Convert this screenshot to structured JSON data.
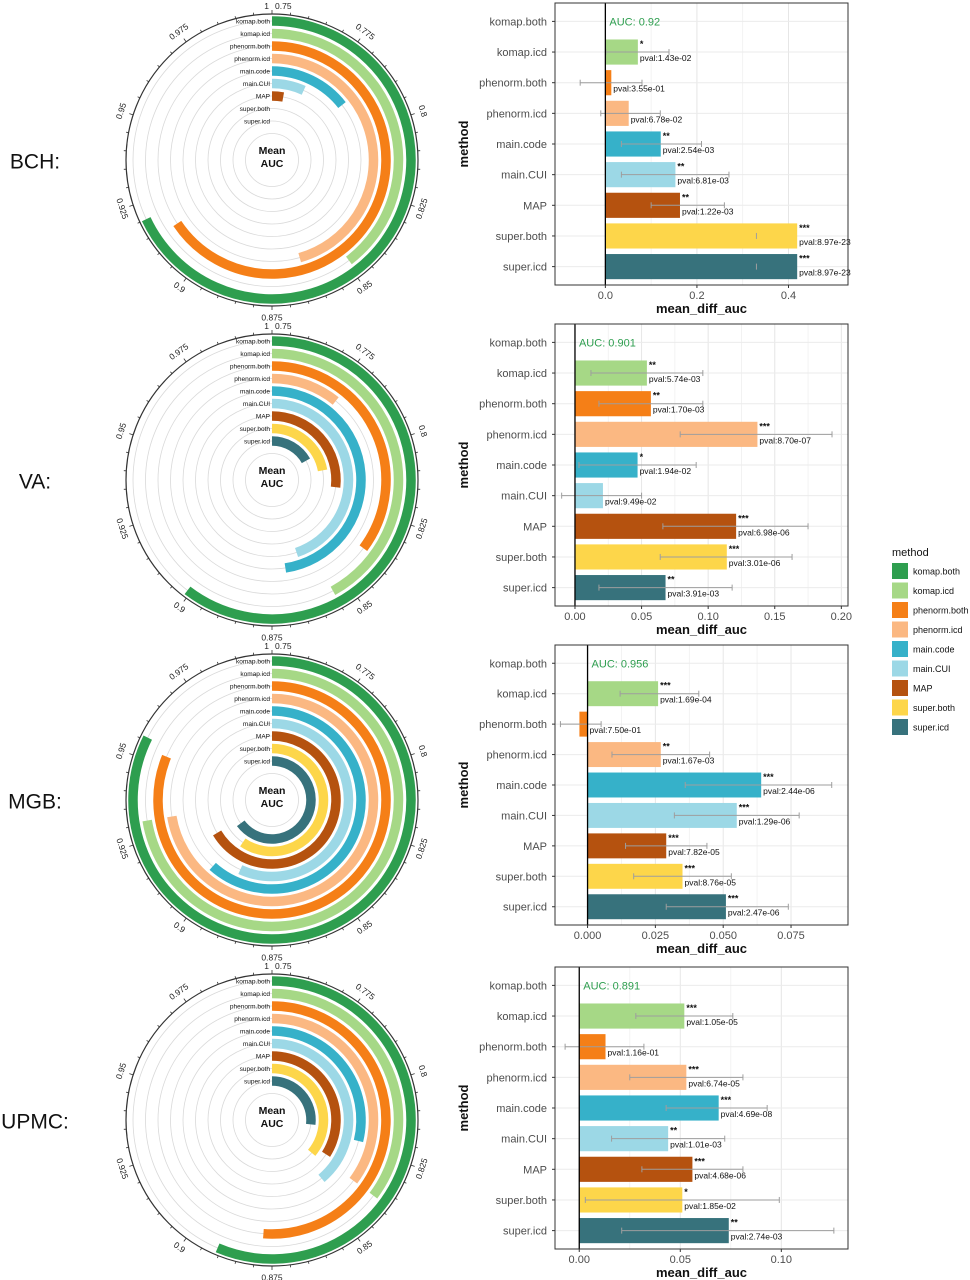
{
  "colors": {
    "komap.both": "#2e9e4f",
    "komap.icd": "#a6d886",
    "phenorm.both": "#f57f17",
    "phenorm.icd": "#fbb882",
    "main.code": "#36b1c9",
    "main.CUI": "#9cd8e6",
    "MAP": "#b5520f",
    "super.both": "#fdd64a",
    "super.icd": "#37727c"
  },
  "legend": {
    "title": "method",
    "entries": [
      "komap.both",
      "komap.icd",
      "phenorm.both",
      "phenorm.icd",
      "main.code",
      "main.CUI",
      "MAP",
      "super.both",
      "super.icd"
    ]
  },
  "radial_common": {
    "center_label_1": "Mean",
    "center_label_2": "AUC",
    "tick_labels": [
      "1",
      "0.75",
      "0.775",
      "0.8",
      "0.825",
      "0.85",
      "0.875",
      "0.9",
      "0.925",
      "0.95",
      "0.975"
    ],
    "ring_labels": [
      "komap.both",
      "komap.icd",
      "phenorm.both",
      "phenorm.icd",
      "main.code",
      "main.CUI",
      "MAP",
      "super.both",
      "super.icd"
    ]
  },
  "chart_data": [
    {
      "type": "radial_bar",
      "site": "BCH:",
      "angular_range": [
        0.75,
        1.0
      ],
      "categories": [
        "komap.both",
        "komap.icd",
        "phenorm.both",
        "phenorm.icd",
        "main.code",
        "main.CUI",
        "MAP",
        "super.both",
        "super.icd"
      ],
      "values": [
        0.92,
        0.849,
        0.914,
        0.864,
        0.786,
        0.767,
        0.757,
        null,
        null
      ]
    },
    {
      "type": "bar",
      "orientation": "horizontal",
      "site": "BCH:",
      "annotation": "AUC: 0.92",
      "ylabel": "method",
      "xlabel": "mean_diff_auc",
      "xlim": [
        -0.11,
        0.53
      ],
      "xticks": [
        0.0,
        0.2,
        0.4
      ],
      "xtick_labels": [
        "0.0",
        "0.2",
        "0.4"
      ],
      "categories": [
        "komap.both",
        "komap.icd",
        "phenorm.both",
        "phenorm.icd",
        "main.code",
        "main.CUI",
        "MAP",
        "super.both",
        "super.icd"
      ],
      "values": [
        0,
        0.071,
        0.013,
        0.051,
        0.121,
        0.153,
        0.163,
        0.419,
        0.419
      ],
      "err_low": [
        null,
        0.001,
        -0.055,
        -0.01,
        0.035,
        0.035,
        0.1,
        0.33,
        0.33
      ],
      "err_high": [
        null,
        0.139,
        0.08,
        0.12,
        0.21,
        0.27,
        0.26,
        0.33,
        0.33
      ],
      "sig": [
        "",
        "*",
        "",
        "",
        "**",
        "**",
        "**",
        "***",
        "***"
      ],
      "pvals": [
        "",
        "pval:1.43e-02",
        "pval:3.55e-01",
        "pval:6.78e-02",
        "pval:2.54e-03",
        "pval:6.81e-03",
        "pval:1.22e-03",
        "pval:8.97e-23",
        "pval:8.97e-23"
      ]
    },
    {
      "type": "radial_bar",
      "site": "VA:",
      "angular_range": [
        0.75,
        1.0
      ],
      "categories": [
        "komap.both",
        "komap.icd",
        "phenorm.both",
        "phenorm.icd",
        "main.code",
        "main.CUI",
        "MAP",
        "super.both",
        "super.icd"
      ],
      "values": [
        0.901,
        0.855,
        0.838,
        0.777,
        0.869,
        0.862,
        0.817,
        0.805,
        0.792
      ]
    },
    {
      "type": "bar",
      "orientation": "horizontal",
      "site": "VA:",
      "annotation": "AUC: 0.901",
      "ylabel": "method",
      "xlabel": "mean_diff_auc",
      "xlim": [
        -0.015,
        0.205
      ],
      "xticks": [
        0.0,
        0.05,
        0.1,
        0.15,
        0.2
      ],
      "xtick_labels": [
        "0.00",
        "0.05",
        "0.10",
        "0.15",
        "0.20"
      ],
      "categories": [
        "komap.both",
        "komap.icd",
        "phenorm.both",
        "phenorm.icd",
        "main.code",
        "main.CUI",
        "MAP",
        "super.both",
        "super.icd"
      ],
      "values": [
        0,
        0.054,
        0.057,
        0.137,
        0.047,
        0.021,
        0.121,
        0.114,
        0.068
      ],
      "err_low": [
        null,
        0.012,
        0.018,
        0.079,
        0.003,
        -0.01,
        0.066,
        0.064,
        0.018
      ],
      "err_high": [
        null,
        0.096,
        0.096,
        0.193,
        0.091,
        0.05,
        0.175,
        0.163,
        0.118
      ],
      "sig": [
        "",
        "**",
        "**",
        "***",
        "*",
        "",
        "***",
        "***",
        "**"
      ],
      "pvals": [
        "",
        "pval:5.74e-03",
        "pval:1.70e-03",
        "pval:8.70e-07",
        "pval:1.94e-02",
        "pval:9.49e-02",
        "pval:6.98e-06",
        "pval:3.01e-06",
        "pval:3.91e-03"
      ]
    },
    {
      "type": "radial_bar",
      "site": "MGB:",
      "angular_range": [
        0.75,
        1.0
      ],
      "categories": [
        "komap.both",
        "komap.icd",
        "phenorm.both",
        "phenorm.icd",
        "main.code",
        "main.CUI",
        "MAP",
        "super.both",
        "super.icd"
      ],
      "values": [
        0.956,
        0.931,
        0.953,
        0.931,
        0.904,
        0.892,
        0.916,
        0.899,
        0.912
      ]
    },
    {
      "type": "bar",
      "orientation": "horizontal",
      "site": "MGB:",
      "annotation": "AUC: 0.956",
      "ylabel": "method",
      "xlabel": "mean_diff_auc",
      "xlim": [
        -0.012,
        0.096
      ],
      "xticks": [
        0.0,
        0.025,
        0.05,
        0.075
      ],
      "xtick_labels": [
        "0.000",
        "0.025",
        "0.050",
        "0.075"
      ],
      "categories": [
        "komap.both",
        "komap.icd",
        "phenorm.both",
        "phenorm.icd",
        "main.code",
        "main.CUI",
        "MAP",
        "super.both",
        "super.icd"
      ],
      "values": [
        0,
        0.026,
        -0.003,
        0.027,
        0.064,
        0.055,
        0.029,
        0.035,
        0.051
      ],
      "err_low": [
        null,
        0.012,
        -0.01,
        0.009,
        0.036,
        0.032,
        0.014,
        0.017,
        0.029
      ],
      "err_high": [
        null,
        0.041,
        0.005,
        0.045,
        0.09,
        0.078,
        0.044,
        0.053,
        0.074
      ],
      "sig": [
        "",
        "***",
        "",
        "**",
        "***",
        "***",
        "***",
        "***",
        "***"
      ],
      "pvals": [
        "",
        "pval:1.69e-04",
        "pval:7.50e-01",
        "pval:1.67e-03",
        "pval:2.44e-06",
        "pval:1.29e-06",
        "pval:7.82e-05",
        "pval:8.76e-05",
        "pval:2.47e-06"
      ]
    },
    {
      "type": "radial_bar",
      "site": "UPMC:",
      "angular_range": [
        0.75,
        1.0
      ],
      "categories": [
        "komap.both",
        "komap.icd",
        "phenorm.both",
        "phenorm.icd",
        "main.code",
        "main.CUI",
        "MAP",
        "super.both",
        "super.icd"
      ],
      "values": [
        0.891,
        0.838,
        0.878,
        0.838,
        0.822,
        0.847,
        0.835,
        0.84,
        0.817
      ]
    },
    {
      "type": "bar",
      "orientation": "horizontal",
      "site": "UPMC:",
      "annotation": "AUC: 0.891",
      "ylabel": "method",
      "xlabel": "mean_diff_auc",
      "xlim": [
        -0.012,
        0.133
      ],
      "xticks": [
        0.0,
        0.05,
        0.1
      ],
      "xtick_labels": [
        "0.00",
        "0.05",
        "0.10"
      ],
      "categories": [
        "komap.both",
        "komap.icd",
        "phenorm.both",
        "phenorm.icd",
        "main.code",
        "main.CUI",
        "MAP",
        "super.both",
        "super.icd"
      ],
      "values": [
        0,
        0.052,
        0.013,
        0.053,
        0.069,
        0.044,
        0.056,
        0.051,
        0.074
      ],
      "err_low": [
        null,
        0.028,
        -0.007,
        0.025,
        0.043,
        0.016,
        0.031,
        0.003,
        0.021
      ],
      "err_high": [
        null,
        0.076,
        0.032,
        0.081,
        0.093,
        0.072,
        0.081,
        0.099,
        0.126
      ],
      "sig": [
        "",
        "***",
        "",
        "***",
        "***",
        "**",
        "***",
        "*",
        "**"
      ],
      "pvals": [
        "",
        "pval:1.05e-05",
        "pval:1.16e-01",
        "pval:6.74e-05",
        "pval:4.69e-08",
        "pval:1.01e-03",
        "pval:4.68e-06",
        "pval:1.85e-02",
        "pval:2.74e-03"
      ]
    }
  ]
}
